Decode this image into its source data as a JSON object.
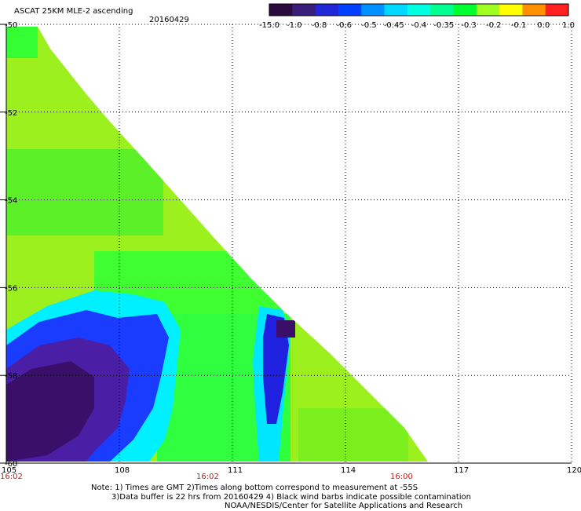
{
  "header": {
    "title": "ASCAT 25KM MLE-2 ascending",
    "date": "20160429"
  },
  "colorbar": {
    "labels": [
      "-15.0",
      "-1.0",
      "-0.8",
      "-0.6",
      "-0.5",
      "-0.45",
      "-0.4",
      "-0.35",
      "-0.3",
      "-0.2",
      "-0.1",
      "0.0",
      "1.0"
    ],
    "colors": [
      "#2b0a3d",
      "#3a1f7a",
      "#2028d8",
      "#0040ff",
      "#0090ff",
      "#00d8ff",
      "#00ffe0",
      "#00ff90",
      "#00ff30",
      "#a0ff20",
      "#ffff00",
      "#ff9000",
      "#ff2020"
    ]
  },
  "axes": {
    "lat_labels": [
      "-50",
      "-52",
      "-54",
      "-56",
      "-58",
      "-60"
    ],
    "lon_labels": [
      "105",
      "108",
      "111",
      "114",
      "117",
      "120"
    ],
    "time_labels": [
      "16:02",
      "16:02",
      "16:00"
    ],
    "time_color": "#c0201c"
  },
  "notes": {
    "line1": "Note: 1) Times are GMT 2)Times along bottom correspond to measurement at -55S",
    "line2": "3)Data buffer is 22 hrs from 20160429 4) Black wind barbs indicate possible contamination",
    "line3": "NOAA/NESDIS/Center for Satellite Applications and Research"
  }
}
